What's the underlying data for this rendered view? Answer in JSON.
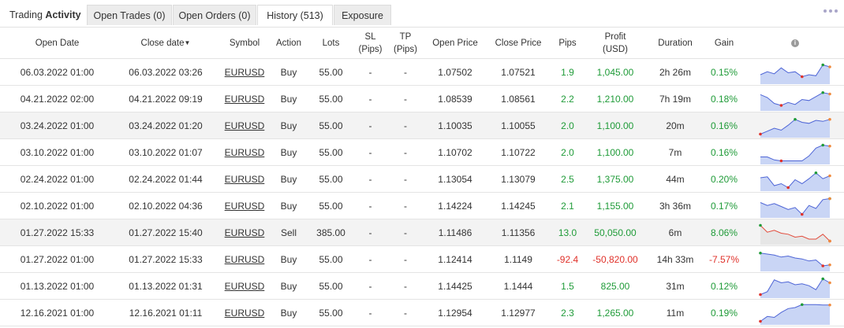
{
  "tabs": [
    {
      "label_pre": "Trading ",
      "label_bold": "Activity"
    },
    {
      "label": "Open Trades (0)"
    },
    {
      "label": "Open Orders (0)"
    },
    {
      "label": "History (513)"
    },
    {
      "label": "Exposure"
    }
  ],
  "columns": {
    "open_date": "Open Date",
    "close_date": "Close date",
    "sort_arrow": "▼",
    "symbol": "Symbol",
    "action": "Action",
    "lots": "Lots",
    "sl": "SL",
    "sl_unit": "(Pips)",
    "tp": "TP",
    "tp_unit": "(Pips)",
    "open_price": "Open Price",
    "close_price": "Close Price",
    "pips": "Pips",
    "profit": "Profit",
    "profit_unit": "(USD)",
    "duration": "Duration",
    "gain": "Gain",
    "info": "i"
  },
  "colors": {
    "positive": "#1f9b38",
    "negative": "#e0312a",
    "spark_line": "#4e65d6",
    "spark_fill": "#c9d5f5",
    "spark_neg_line": "#e24b3b",
    "spark_neg_fill": "#e6e6e6"
  },
  "rows": [
    {
      "open_date": "06.03.2022 01:00",
      "close_date": "06.03.2022 03:26",
      "symbol": "EURUSD",
      "action": "Buy",
      "lots": "55.00",
      "sl": "-",
      "tp": "-",
      "open_price": "1.07502",
      "close_price": "1.07521",
      "pips": "1.9",
      "profit": "1,045.00",
      "duration": "2h 26m",
      "gain": "0.15%",
      "sign": "pos",
      "spark": [
        0.4,
        0.55,
        0.45,
        0.75,
        0.5,
        0.55,
        0.3,
        0.4,
        0.35,
        0.9,
        0.8
      ]
    },
    {
      "open_date": "04.21.2022 02:00",
      "close_date": "04.21.2022 09:19",
      "symbol": "EURUSD",
      "action": "Buy",
      "lots": "55.00",
      "sl": "-",
      "tp": "-",
      "open_price": "1.08539",
      "close_price": "1.08561",
      "pips": "2.2",
      "profit": "1,210.00",
      "duration": "7h 19m",
      "gain": "0.18%",
      "sign": "pos",
      "spark": [
        0.75,
        0.6,
        0.3,
        0.2,
        0.35,
        0.25,
        0.5,
        0.45,
        0.65,
        0.85,
        0.78
      ]
    },
    {
      "open_date": "03.24.2022 01:00",
      "close_date": "03.24.2022 01:20",
      "symbol": "EURUSD",
      "action": "Buy",
      "lots": "55.00",
      "sl": "-",
      "tp": "-",
      "open_price": "1.10035",
      "close_price": "1.10055",
      "pips": "2.0",
      "profit": "1,100.00",
      "duration": "20m",
      "gain": "0.16%",
      "sign": "pos",
      "spark": [
        0.1,
        0.25,
        0.4,
        0.3,
        0.55,
        0.85,
        0.7,
        0.65,
        0.8,
        0.75,
        0.85
      ]
    },
    {
      "open_date": "03.10.2022 01:00",
      "close_date": "03.10.2022 01:07",
      "symbol": "EURUSD",
      "action": "Buy",
      "lots": "55.00",
      "sl": "-",
      "tp": "-",
      "open_price": "1.10702",
      "close_price": "1.10722",
      "pips": "2.0",
      "profit": "1,100.00",
      "duration": "7m",
      "gain": "0.16%",
      "sign": "pos",
      "spark": [
        0.3,
        0.3,
        0.15,
        0.1,
        0.1,
        0.1,
        0.1,
        0.35,
        0.75,
        0.9,
        0.85
      ]
    },
    {
      "open_date": "02.24.2022 01:00",
      "close_date": "02.24.2022 01:44",
      "symbol": "EURUSD",
      "action": "Buy",
      "lots": "55.00",
      "sl": "-",
      "tp": "-",
      "open_price": "1.13054",
      "close_price": "1.13079",
      "pips": "2.5",
      "profit": "1,375.00",
      "duration": "44m",
      "gain": "0.20%",
      "sign": "pos",
      "spark": [
        0.6,
        0.65,
        0.2,
        0.3,
        0.1,
        0.5,
        0.3,
        0.55,
        0.85,
        0.55,
        0.7
      ]
    },
    {
      "open_date": "02.10.2022 01:00",
      "close_date": "02.10.2022 04:36",
      "symbol": "EURUSD",
      "action": "Buy",
      "lots": "55.00",
      "sl": "-",
      "tp": "-",
      "open_price": "1.14224",
      "close_price": "1.14245",
      "pips": "2.1",
      "profit": "1,155.00",
      "duration": "3h 36m",
      "gain": "0.17%",
      "sign": "pos",
      "spark": [
        0.7,
        0.55,
        0.65,
        0.5,
        0.35,
        0.45,
        0.1,
        0.55,
        0.4,
        0.85,
        0.9
      ]
    },
    {
      "open_date": "01.27.2022 15:33",
      "close_date": "01.27.2022 15:40",
      "symbol": "EURUSD",
      "action": "Sell",
      "lots": "385.00",
      "sl": "-",
      "tp": "-",
      "open_price": "1.11486",
      "close_price": "1.11356",
      "pips": "13.0",
      "profit": "50,050.00",
      "duration": "6m",
      "gain": "8.06%",
      "sign": "pos",
      "spark_style": "neg",
      "spark": [
        0.9,
        0.55,
        0.65,
        0.5,
        0.45,
        0.3,
        0.35,
        0.2,
        0.2,
        0.45,
        0.1
      ]
    },
    {
      "open_date": "01.27.2022 01:00",
      "close_date": "01.27.2022 15:33",
      "symbol": "EURUSD",
      "action": "Buy",
      "lots": "55.00",
      "sl": "-",
      "tp": "-",
      "open_price": "1.12414",
      "close_price": "1.1149",
      "pips": "-92.4",
      "profit": "-50,820.00",
      "duration": "14h 33m",
      "gain": "-7.57%",
      "sign": "neg",
      "spark": [
        0.85,
        0.8,
        0.75,
        0.65,
        0.7,
        0.6,
        0.55,
        0.45,
        0.5,
        0.2,
        0.25
      ]
    },
    {
      "open_date": "01.13.2022 01:00",
      "close_date": "01.13.2022 01:31",
      "symbol": "EURUSD",
      "action": "Buy",
      "lots": "55.00",
      "sl": "-",
      "tp": "-",
      "open_price": "1.14425",
      "close_price": "1.1444",
      "pips": "1.5",
      "profit": "825.00",
      "duration": "31m",
      "gain": "0.12%",
      "sign": "pos",
      "spark": [
        0.1,
        0.25,
        0.85,
        0.7,
        0.75,
        0.6,
        0.65,
        0.55,
        0.35,
        0.9,
        0.7
      ]
    },
    {
      "open_date": "12.16.2021 01:00",
      "close_date": "12.16.2021 01:11",
      "symbol": "EURUSD",
      "action": "Buy",
      "lots": "55.00",
      "sl": "-",
      "tp": "-",
      "open_price": "1.12954",
      "close_price": "1.12977",
      "pips": "2.3",
      "profit": "1,265.00",
      "duration": "11m",
      "gain": "0.19%",
      "sign": "pos",
      "spark": [
        0.1,
        0.35,
        0.3,
        0.55,
        0.75,
        0.8,
        0.95,
        0.95,
        0.95,
        0.93,
        0.93
      ]
    }
  ]
}
